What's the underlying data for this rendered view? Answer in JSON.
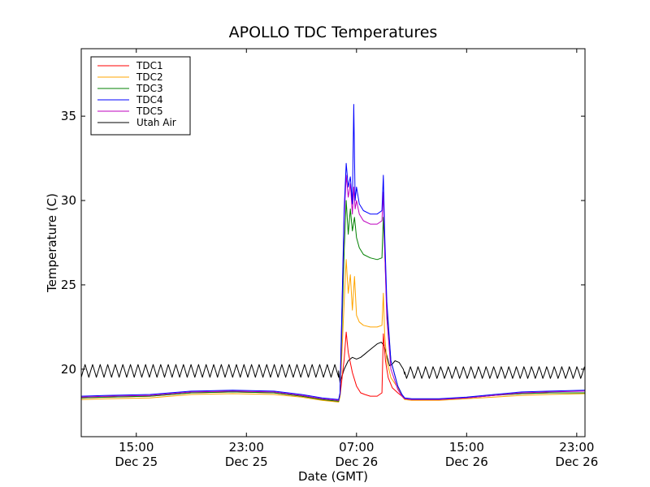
{
  "chart_data": {
    "type": "line",
    "title": "APOLLO TDC Temperatures",
    "xlabel": "Date (GMT)",
    "ylabel": "Temperature (C)",
    "xlim": [
      11.0,
      47.6
    ],
    "ylim": [
      16,
      39
    ],
    "x_unit": "hours since Dec 25 00:00 GMT",
    "x_ticks": [
      {
        "value": 15,
        "line1": "15:00",
        "line2": "Dec 25"
      },
      {
        "value": 23,
        "line1": "23:00",
        "line2": "Dec 25"
      },
      {
        "value": 31,
        "line1": "07:00",
        "line2": "Dec 26"
      },
      {
        "value": 39,
        "line1": "15:00",
        "line2": "Dec 26"
      },
      {
        "value": 47,
        "line1": "23:00",
        "line2": "Dec 26"
      }
    ],
    "y_ticks": [
      20,
      25,
      30,
      35
    ],
    "grid": false,
    "legend_position": "top-left",
    "series": [
      {
        "name": "TDC1",
        "color": "#ff0000",
        "x": [
          11.0,
          13.0,
          16.0,
          19.0,
          22.0,
          25.0,
          27.0,
          28.5,
          29.7,
          29.8,
          30.1,
          30.25,
          30.4,
          30.7,
          31.0,
          31.3,
          31.6,
          32.0,
          32.5,
          32.85,
          32.95,
          33.1,
          33.3,
          33.6,
          34.0,
          34.3,
          34.5,
          35.0,
          37.0,
          39.0,
          41.0,
          43.0,
          45.0,
          47.6
        ],
        "y": [
          18.3,
          18.35,
          18.4,
          18.6,
          18.65,
          18.6,
          18.4,
          18.2,
          18.1,
          18.4,
          20.6,
          22.2,
          21.0,
          19.8,
          19.0,
          18.6,
          18.5,
          18.4,
          18.4,
          18.6,
          22.1,
          20.5,
          19.5,
          18.9,
          18.6,
          18.4,
          18.25,
          18.2,
          18.2,
          18.3,
          18.45,
          18.55,
          18.6,
          18.6
        ]
      },
      {
        "name": "TDC2",
        "color": "#ffa500",
        "x": [
          11.0,
          13.0,
          16.0,
          19.0,
          22.0,
          25.0,
          27.0,
          28.5,
          29.7,
          29.8,
          30.1,
          30.25,
          30.4,
          30.55,
          30.7,
          30.85,
          31.0,
          31.2,
          31.5,
          32.0,
          32.5,
          32.85,
          32.95,
          33.05,
          33.2,
          33.5,
          34.0,
          34.3,
          34.5,
          35.0,
          37.0,
          39.0,
          41.0,
          43.0,
          45.0,
          47.6
        ],
        "y": [
          18.2,
          18.25,
          18.3,
          18.5,
          18.55,
          18.5,
          18.35,
          18.15,
          18.05,
          18.4,
          24.0,
          26.5,
          24.5,
          25.6,
          23.5,
          25.5,
          23.2,
          22.8,
          22.6,
          22.5,
          22.5,
          22.6,
          24.5,
          22.0,
          20.5,
          19.5,
          18.9,
          18.4,
          18.2,
          18.15,
          18.15,
          18.25,
          18.35,
          18.45,
          18.5,
          18.55
        ]
      },
      {
        "name": "TDC3",
        "color": "#008000",
        "x": [
          11.0,
          13.0,
          16.0,
          19.0,
          22.0,
          25.0,
          27.0,
          28.5,
          29.7,
          29.8,
          30.1,
          30.25,
          30.4,
          30.55,
          30.7,
          30.85,
          31.0,
          31.2,
          31.5,
          32.0,
          32.5,
          32.85,
          32.95,
          33.05,
          33.2,
          33.5,
          34.0,
          34.3,
          34.5,
          35.0,
          37.0,
          39.0,
          41.0,
          43.0,
          45.0,
          47.6
        ],
        "y": [
          18.3,
          18.35,
          18.4,
          18.6,
          18.65,
          18.6,
          18.4,
          18.2,
          18.1,
          18.5,
          27.0,
          30.0,
          28.0,
          29.5,
          28.2,
          29.0,
          27.8,
          27.2,
          26.8,
          26.6,
          26.5,
          26.6,
          29.0,
          27.0,
          23.5,
          20.5,
          19.0,
          18.5,
          18.25,
          18.2,
          18.2,
          18.3,
          18.45,
          18.55,
          18.6,
          18.6
        ]
      },
      {
        "name": "TDC4",
        "color": "#0000ff",
        "x": [
          11.0,
          13.0,
          16.0,
          19.0,
          22.0,
          25.0,
          27.0,
          28.5,
          29.7,
          29.8,
          30.1,
          30.25,
          30.4,
          30.55,
          30.7,
          30.8,
          30.9,
          31.0,
          31.2,
          31.5,
          32.0,
          32.5,
          32.85,
          32.95,
          33.05,
          33.2,
          33.5,
          34.0,
          34.3,
          34.5,
          35.0,
          37.0,
          39.0,
          41.0,
          43.0,
          45.0,
          47.6
        ],
        "y": [
          18.4,
          18.45,
          18.5,
          18.7,
          18.75,
          18.7,
          18.5,
          18.3,
          18.2,
          18.6,
          29.5,
          32.2,
          30.8,
          31.4,
          29.8,
          35.7,
          30.0,
          30.8,
          29.8,
          29.4,
          29.2,
          29.2,
          29.4,
          31.5,
          28.0,
          24.0,
          20.5,
          19.0,
          18.5,
          18.3,
          18.25,
          18.25,
          18.35,
          18.5,
          18.65,
          18.7,
          18.75
        ]
      },
      {
        "name": "TDC5",
        "color": "#bf00bf",
        "x": [
          11.0,
          13.0,
          16.0,
          19.0,
          22.0,
          25.0,
          27.0,
          28.5,
          29.7,
          29.8,
          30.1,
          30.25,
          30.4,
          30.55,
          30.7,
          30.8,
          30.9,
          31.0,
          31.2,
          31.5,
          32.0,
          32.5,
          32.85,
          32.95,
          33.05,
          33.2,
          33.5,
          34.0,
          34.3,
          34.5,
          35.0,
          37.0,
          39.0,
          41.0,
          43.0,
          45.0,
          47.6
        ],
        "y": [
          18.35,
          18.4,
          18.45,
          18.65,
          18.7,
          18.65,
          18.45,
          18.25,
          18.15,
          18.55,
          29.0,
          31.5,
          30.2,
          31.0,
          29.2,
          30.8,
          29.5,
          30.0,
          29.2,
          28.8,
          28.6,
          28.6,
          28.8,
          30.5,
          27.0,
          23.0,
          20.0,
          18.8,
          18.4,
          18.25,
          18.2,
          18.2,
          18.3,
          18.45,
          18.6,
          18.65,
          18.7
        ]
      },
      {
        "name": "Utah Air",
        "color": "#000000",
        "x": [
          11.0,
          29.7,
          29.8,
          30.1,
          30.4,
          30.7,
          31.0,
          31.3,
          31.6,
          31.9,
          32.2,
          32.5,
          32.8,
          33.0,
          33.2,
          33.4,
          33.6,
          33.8,
          34.1,
          34.4,
          34.5,
          47.6
        ],
        "y": [
          19.9,
          19.9,
          19.2,
          20.0,
          20.5,
          20.7,
          20.6,
          20.7,
          20.9,
          21.1,
          21.3,
          21.5,
          21.6,
          21.4,
          20.8,
          20.2,
          20.3,
          20.5,
          20.4,
          20.0,
          19.7,
          19.8
        ],
        "oscillation": {
          "period_hours": 0.55,
          "amplitude": 0.38,
          "segments": [
            [
              11.0,
              29.7
            ],
            [
              34.5,
              47.6
            ]
          ]
        }
      }
    ]
  }
}
